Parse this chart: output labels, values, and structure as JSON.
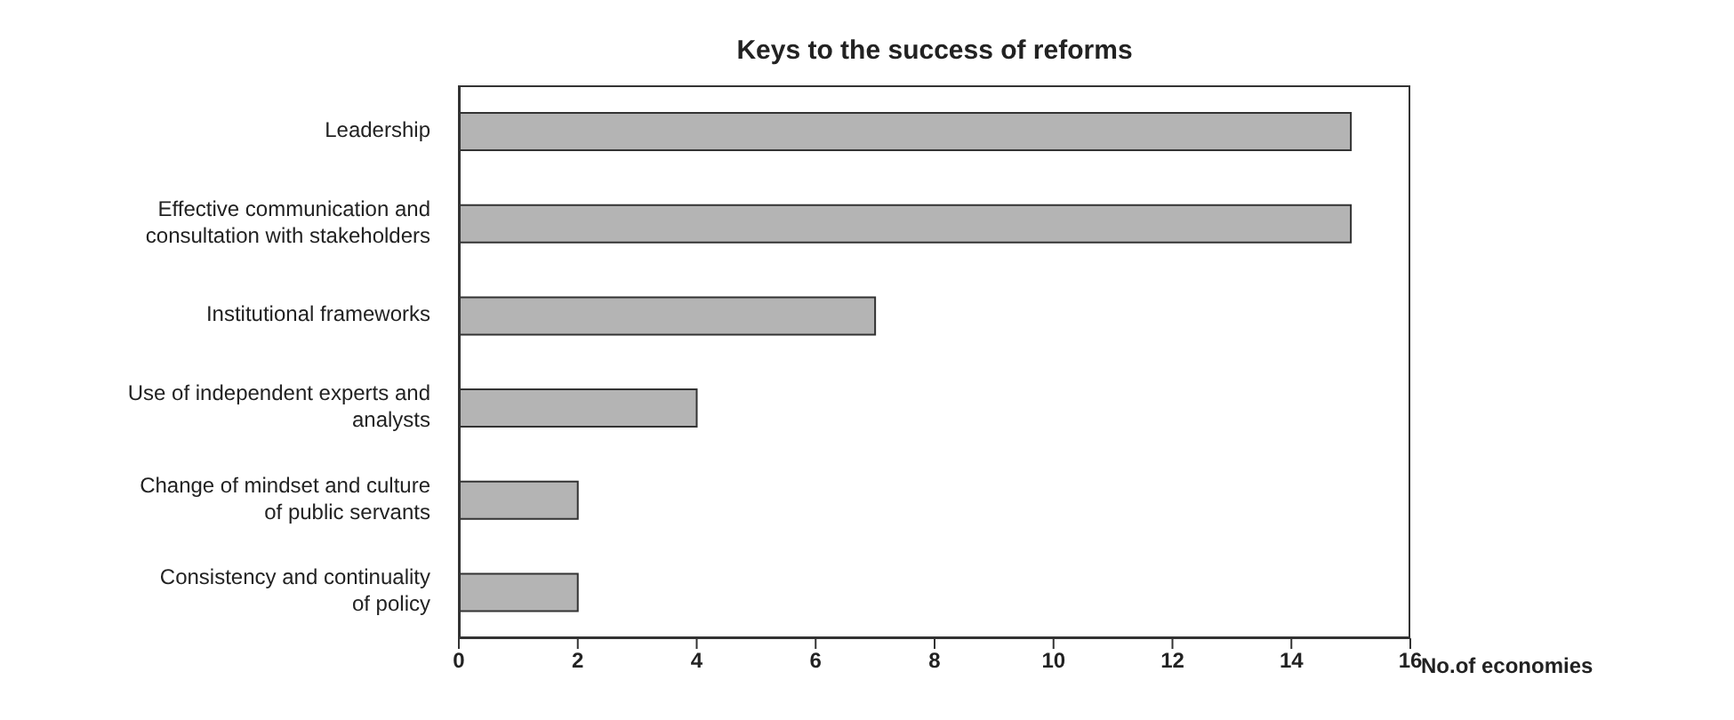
{
  "chart_data": {
    "type": "bar",
    "orientation": "horizontal",
    "title": "Keys to the success of reforms",
    "xlabel": "No.of economies",
    "categories": [
      "Leadership",
      "Effective communication and consultation with stakeholders",
      "Institutional frameworks",
      "Use of independent experts and analysts",
      "Change of mindset and culture of public servants",
      "Consistency and continuality of policy"
    ],
    "values": [
      15,
      15,
      7,
      4,
      2,
      2
    ],
    "color": "#b4b4b4",
    "xlim": [
      0,
      16
    ],
    "xticks": [
      0,
      2,
      4,
      6,
      8,
      10,
      12,
      14,
      16
    ],
    "grid": false
  }
}
